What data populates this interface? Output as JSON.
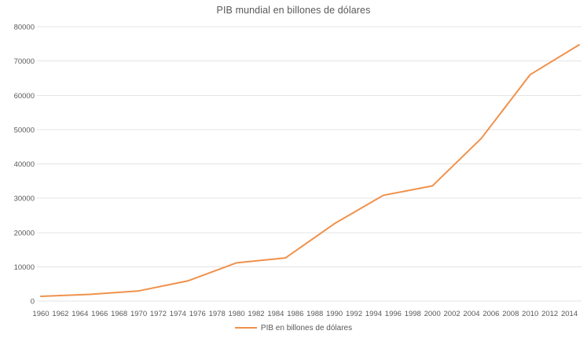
{
  "title": "PIB mundial en billones de dólares",
  "legend": {
    "label": "PIB en billones de dólares"
  },
  "colors": {
    "line": "#F0914B",
    "text": "#595959",
    "grid": "#E4E4E4",
    "background": "#FFFFFF"
  },
  "chart_data": {
    "type": "line",
    "title": "PIB mundial en billones de dólares",
    "xlabel": "",
    "ylabel": "",
    "x": [
      1960,
      1965,
      1970,
      1975,
      1980,
      1985,
      1990,
      1995,
      2000,
      2005,
      2010,
      2015
    ],
    "series": [
      {
        "name": "PIB en billones de dólares",
        "color": "#F0914B",
        "values": [
          1367,
          1944,
          2964,
          5866,
          11154,
          12585,
          22574,
          30845,
          33572,
          47434,
          66036,
          74723
        ]
      }
    ],
    "xlim": [
      1960,
      2015
    ],
    "ylim": [
      0,
      80000
    ],
    "yticks": [
      0,
      10000,
      20000,
      30000,
      40000,
      50000,
      60000,
      70000,
      80000
    ],
    "xticks": [
      1960,
      1962,
      1964,
      1966,
      1968,
      1970,
      1972,
      1974,
      1976,
      1978,
      1980,
      1982,
      1984,
      1986,
      1988,
      1990,
      1992,
      1994,
      1996,
      1998,
      2000,
      2002,
      2004,
      2006,
      2008,
      2010,
      2012,
      2014
    ],
    "grid": "horizontal",
    "legend_position": "bottom"
  }
}
